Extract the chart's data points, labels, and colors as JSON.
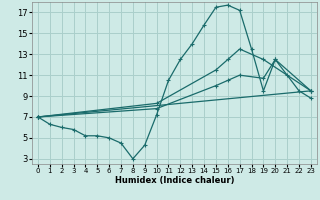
{
  "background_color": "#ceeae6",
  "grid_color": "#aacfcb",
  "line_color": "#1a6b6b",
  "x_label": "Humidex (Indice chaleur)",
  "x_ticks": [
    0,
    1,
    2,
    3,
    4,
    5,
    6,
    7,
    8,
    9,
    10,
    11,
    12,
    13,
    14,
    15,
    16,
    17,
    18,
    19,
    20,
    21,
    22,
    23
  ],
  "y_ticks": [
    3,
    5,
    7,
    9,
    11,
    13,
    15,
    17
  ],
  "xlim": [
    -0.5,
    23.5
  ],
  "ylim": [
    2.5,
    18.0
  ],
  "series": [
    {
      "x": [
        0,
        1,
        2,
        3,
        4,
        5,
        6,
        7,
        8,
        9,
        10,
        11,
        12,
        13,
        14,
        15,
        16,
        17,
        18,
        19,
        20,
        21,
        22,
        23
      ],
      "y": [
        7.0,
        6.3,
        6.0,
        5.8,
        5.2,
        5.2,
        5.0,
        4.5,
        3.0,
        4.3,
        7.2,
        10.5,
        12.5,
        14.0,
        15.8,
        17.5,
        17.7,
        17.2,
        13.5,
        9.5,
        12.5,
        11.0,
        9.5,
        8.8
      ]
    },
    {
      "x": [
        0,
        10,
        15,
        16,
        17,
        19,
        23
      ],
      "y": [
        7.0,
        8.3,
        11.5,
        12.5,
        13.5,
        12.5,
        9.5
      ]
    },
    {
      "x": [
        0,
        10,
        15,
        16,
        17,
        19,
        20,
        23
      ],
      "y": [
        7.0,
        7.8,
        10.0,
        10.5,
        11.0,
        10.7,
        12.5,
        9.5
      ]
    },
    {
      "x": [
        0,
        23
      ],
      "y": [
        7.0,
        9.5
      ]
    }
  ]
}
